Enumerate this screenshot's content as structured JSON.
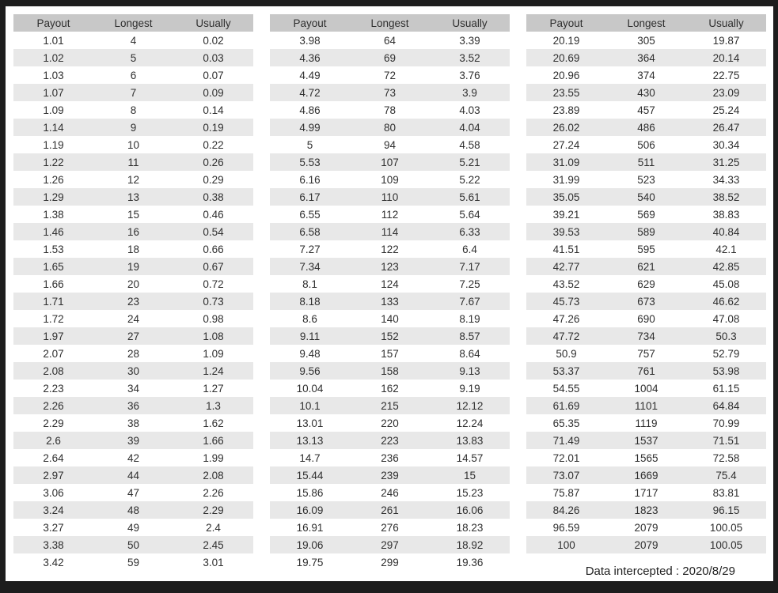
{
  "columns": [
    "Payout",
    "Longest",
    "Usually"
  ],
  "footer": "Data intercepted : 2020/8/29",
  "colors": {
    "frame_bg": "#1d1d1d",
    "page_bg": "#ffffff",
    "header_bg": "#c8c8c8",
    "stripe_bg": "#e8e8e8",
    "text_color": "#2f2f2f"
  },
  "tables": [
    {
      "rows": [
        [
          "1.01",
          "4",
          "0.02"
        ],
        [
          "1.02",
          "5",
          "0.03"
        ],
        [
          "1.03",
          "6",
          "0.07"
        ],
        [
          "1.07",
          "7",
          "0.09"
        ],
        [
          "1.09",
          "8",
          "0.14"
        ],
        [
          "1.14",
          "9",
          "0.19"
        ],
        [
          "1.19",
          "10",
          "0.22"
        ],
        [
          "1.22",
          "11",
          "0.26"
        ],
        [
          "1.26",
          "12",
          "0.29"
        ],
        [
          "1.29",
          "13",
          "0.38"
        ],
        [
          "1.38",
          "15",
          "0.46"
        ],
        [
          "1.46",
          "16",
          "0.54"
        ],
        [
          "1.53",
          "18",
          "0.66"
        ],
        [
          "1.65",
          "19",
          "0.67"
        ],
        [
          "1.66",
          "20",
          "0.72"
        ],
        [
          "1.71",
          "23",
          "0.73"
        ],
        [
          "1.72",
          "24",
          "0.98"
        ],
        [
          "1.97",
          "27",
          "1.08"
        ],
        [
          "2.07",
          "28",
          "1.09"
        ],
        [
          "2.08",
          "30",
          "1.24"
        ],
        [
          "2.23",
          "34",
          "1.27"
        ],
        [
          "2.26",
          "36",
          "1.3"
        ],
        [
          "2.29",
          "38",
          "1.62"
        ],
        [
          "2.6",
          "39",
          "1.66"
        ],
        [
          "2.64",
          "42",
          "1.99"
        ],
        [
          "2.97",
          "44",
          "2.08"
        ],
        [
          "3.06",
          "47",
          "2.26"
        ],
        [
          "3.24",
          "48",
          "2.29"
        ],
        [
          "3.27",
          "49",
          "2.4"
        ],
        [
          "3.38",
          "50",
          "2.45"
        ],
        [
          "3.42",
          "59",
          "3.01"
        ]
      ]
    },
    {
      "rows": [
        [
          "3.98",
          "64",
          "3.39"
        ],
        [
          "4.36",
          "69",
          "3.52"
        ],
        [
          "4.49",
          "72",
          "3.76"
        ],
        [
          "4.72",
          "73",
          "3.9"
        ],
        [
          "4.86",
          "78",
          "4.03"
        ],
        [
          "4.99",
          "80",
          "4.04"
        ],
        [
          "5",
          "94",
          "4.58"
        ],
        [
          "5.53",
          "107",
          "5.21"
        ],
        [
          "6.16",
          "109",
          "5.22"
        ],
        [
          "6.17",
          "110",
          "5.61"
        ],
        [
          "6.55",
          "112",
          "5.64"
        ],
        [
          "6.58",
          "114",
          "6.33"
        ],
        [
          "7.27",
          "122",
          "6.4"
        ],
        [
          "7.34",
          "123",
          "7.17"
        ],
        [
          "8.1",
          "124",
          "7.25"
        ],
        [
          "8.18",
          "133",
          "7.67"
        ],
        [
          "8.6",
          "140",
          "8.19"
        ],
        [
          "9.11",
          "152",
          "8.57"
        ],
        [
          "9.48",
          "157",
          "8.64"
        ],
        [
          "9.56",
          "158",
          "9.13"
        ],
        [
          "10.04",
          "162",
          "9.19"
        ],
        [
          "10.1",
          "215",
          "12.12"
        ],
        [
          "13.01",
          "220",
          "12.24"
        ],
        [
          "13.13",
          "223",
          "13.83"
        ],
        [
          "14.7",
          "236",
          "14.57"
        ],
        [
          "15.44",
          "239",
          "15"
        ],
        [
          "15.86",
          "246",
          "15.23"
        ],
        [
          "16.09",
          "261",
          "16.06"
        ],
        [
          "16.91",
          "276",
          "18.23"
        ],
        [
          "19.06",
          "297",
          "18.92"
        ],
        [
          "19.75",
          "299",
          "19.36"
        ]
      ]
    },
    {
      "rows": [
        [
          "20.19",
          "305",
          "19.87"
        ],
        [
          "20.69",
          "364",
          "20.14"
        ],
        [
          "20.96",
          "374",
          "22.75"
        ],
        [
          "23.55",
          "430",
          "23.09"
        ],
        [
          "23.89",
          "457",
          "25.24"
        ],
        [
          "26.02",
          "486",
          "26.47"
        ],
        [
          "27.24",
          "506",
          "30.34"
        ],
        [
          "31.09",
          "511",
          "31.25"
        ],
        [
          "31.99",
          "523",
          "34.33"
        ],
        [
          "35.05",
          "540",
          "38.52"
        ],
        [
          "39.21",
          "569",
          "38.83"
        ],
        [
          "39.53",
          "589",
          "40.84"
        ],
        [
          "41.51",
          "595",
          "42.1"
        ],
        [
          "42.77",
          "621",
          "42.85"
        ],
        [
          "43.52",
          "629",
          "45.08"
        ],
        [
          "45.73",
          "673",
          "46.62"
        ],
        [
          "47.26",
          "690",
          "47.08"
        ],
        [
          "47.72",
          "734",
          "50.3"
        ],
        [
          "50.9",
          "757",
          "52.79"
        ],
        [
          "53.37",
          "761",
          "53.98"
        ],
        [
          "54.55",
          "1004",
          "61.15"
        ],
        [
          "61.69",
          "1101",
          "64.84"
        ],
        [
          "65.35",
          "1119",
          "70.99"
        ],
        [
          "71.49",
          "1537",
          "71.51"
        ],
        [
          "72.01",
          "1565",
          "72.58"
        ],
        [
          "73.07",
          "1669",
          "75.4"
        ],
        [
          "75.87",
          "1717",
          "83.81"
        ],
        [
          "84.26",
          "1823",
          "96.15"
        ],
        [
          "96.59",
          "2079",
          "100.05"
        ],
        [
          "100",
          "2079",
          "100.05"
        ]
      ]
    }
  ]
}
